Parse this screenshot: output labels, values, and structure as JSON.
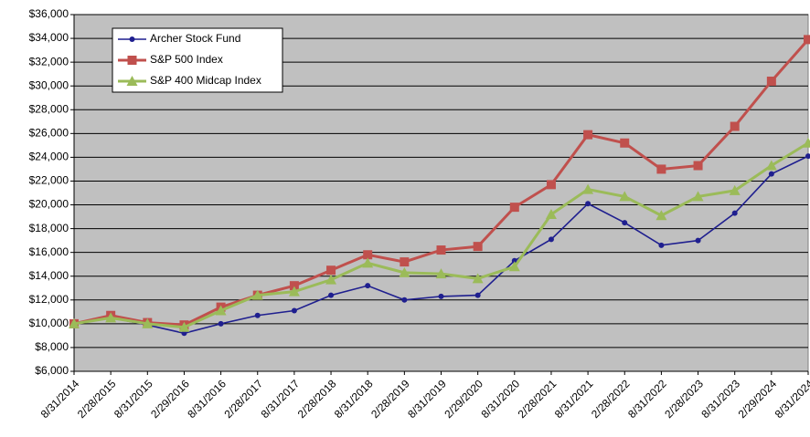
{
  "chart_data": {
    "type": "line",
    "categories": [
      "8/31/2014",
      "2/28/2015",
      "8/31/2015",
      "2/29/2016",
      "8/31/2016",
      "2/28/2017",
      "8/31/2017",
      "2/28/2018",
      "8/31/2018",
      "2/28/2019",
      "8/31/2019",
      "2/29/2020",
      "8/31/2020",
      "2/28/2021",
      "8/31/2021",
      "2/28/2022",
      "8/31/2022",
      "2/28/2023",
      "8/31/2023",
      "2/29/2024",
      "8/31/2024"
    ],
    "series": [
      {
        "name": "Archer Stock Fund",
        "color": "#1f1f8f",
        "marker": "circle",
        "values": [
          10000,
          10500,
          9900,
          9200,
          10000,
          10700,
          11100,
          12400,
          13200,
          12000,
          12300,
          12400,
          15300,
          17100,
          20100,
          18500,
          16600,
          17000,
          19300,
          22600,
          24100
        ]
      },
      {
        "name": "S&P 500 Index",
        "color": "#c0504d",
        "marker": "square",
        "values": [
          10000,
          10700,
          10100,
          9900,
          11400,
          12400,
          13200,
          14500,
          15800,
          15200,
          16200,
          16500,
          19800,
          21700,
          25900,
          25200,
          23000,
          23300,
          26600,
          30400,
          33900
        ]
      },
      {
        "name": "S&P 400 Midcap Index",
        "color": "#9bbb59",
        "marker": "triangle",
        "values": [
          10000,
          10500,
          10000,
          9700,
          11100,
          12400,
          12700,
          13700,
          15100,
          14300,
          14200,
          13800,
          14800,
          19200,
          21300,
          20700,
          19100,
          20700,
          21200,
          23300,
          25200
        ]
      }
    ],
    "ylim": [
      6000,
      36000
    ],
    "yticks": [
      {
        "value": 6000,
        "label": "$6,000"
      },
      {
        "value": 8000,
        "label": "$8,000"
      },
      {
        "value": 10000,
        "label": "$10,000"
      },
      {
        "value": 12000,
        "label": "$12,000"
      },
      {
        "value": 14000,
        "label": "$14,000"
      },
      {
        "value": 16000,
        "label": "$16,000"
      },
      {
        "value": 18000,
        "label": "$18,000"
      },
      {
        "value": 20000,
        "label": "$20,000"
      },
      {
        "value": 22000,
        "label": "$22,000"
      },
      {
        "value": 24000,
        "label": "$24,000"
      },
      {
        "value": 26000,
        "label": "$26,000"
      },
      {
        "value": 28000,
        "label": "$28,000"
      },
      {
        "value": 30000,
        "label": "$30,000"
      },
      {
        "value": 32000,
        "label": "$32,000"
      },
      {
        "value": 34000,
        "label": "$34,000"
      },
      {
        "value": 36000,
        "label": "$36,000"
      }
    ],
    "grid": true,
    "legend": "top-left",
    "background": "#c0c0c0"
  }
}
